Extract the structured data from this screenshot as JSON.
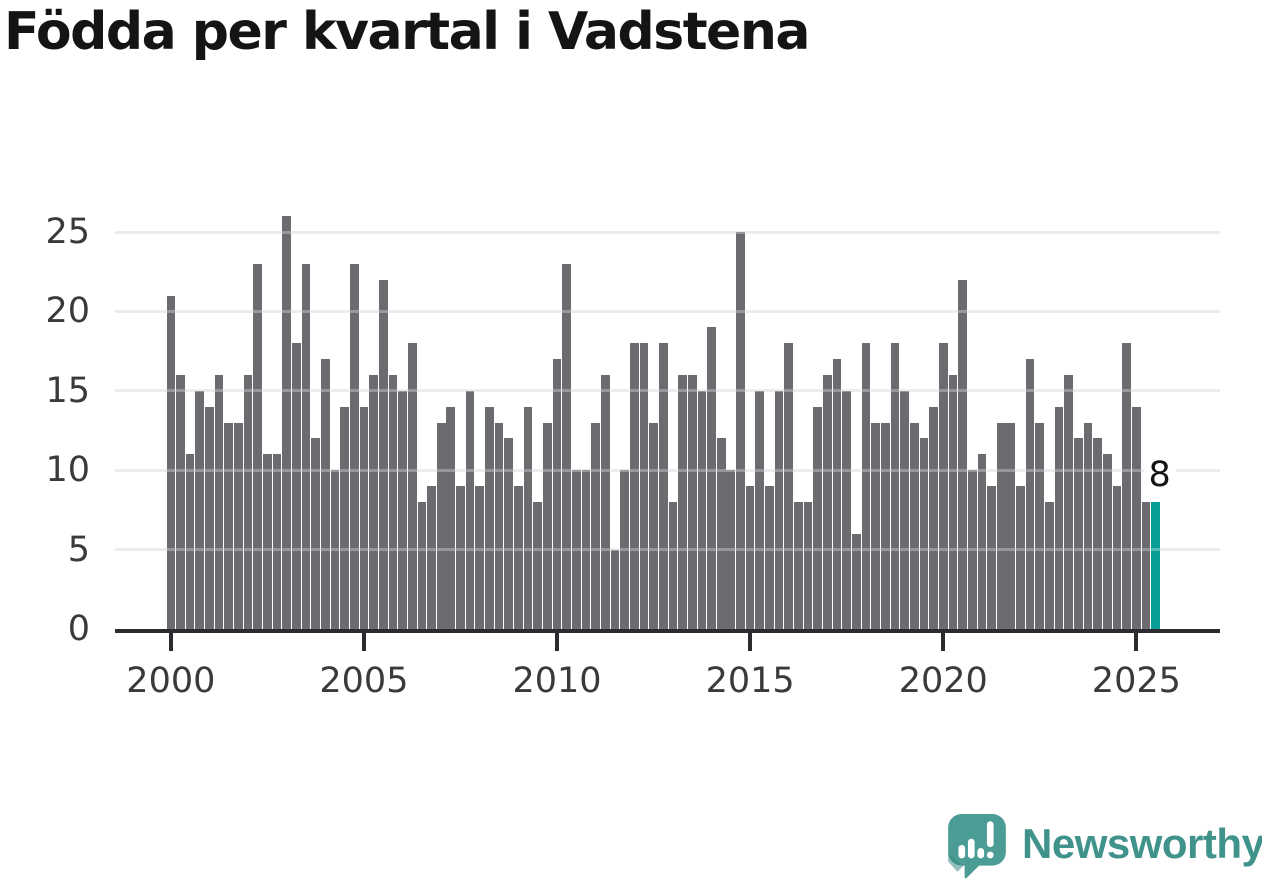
{
  "chart": {
    "title": "Födda per kvartal i Vadstena"
  },
  "chart_data": {
    "type": "bar",
    "title": "Födda per kvartal i Vadstena",
    "xlabel": "",
    "ylabel": "",
    "ylim": [
      0,
      26
    ],
    "yticks": [
      0,
      5,
      10,
      15,
      20,
      25
    ],
    "grid": true,
    "legend": false,
    "bar_color": "#6c6b70",
    "categories": [
      "2000 Q1",
      "2000 Q2",
      "2000 Q3",
      "2000 Q4",
      "2001 Q1",
      "2001 Q2",
      "2001 Q3",
      "2001 Q4",
      "2002 Q1",
      "2002 Q2",
      "2002 Q3",
      "2002 Q4",
      "2003 Q1",
      "2003 Q2",
      "2003 Q3",
      "2003 Q4",
      "2004 Q1",
      "2004 Q2",
      "2004 Q3",
      "2004 Q4",
      "2005 Q1",
      "2005 Q2",
      "2005 Q3",
      "2005 Q4",
      "2006 Q1",
      "2006 Q2",
      "2006 Q3",
      "2006 Q4",
      "2007 Q1",
      "2007 Q2",
      "2007 Q3",
      "2007 Q4",
      "2008 Q1",
      "2008 Q2",
      "2008 Q3",
      "2008 Q4",
      "2009 Q1",
      "2009 Q2",
      "2009 Q3",
      "2009 Q4",
      "2010 Q1",
      "2010 Q2",
      "2010 Q3",
      "2010 Q4",
      "2011 Q1",
      "2011 Q2",
      "2011 Q3",
      "2011 Q4",
      "2012 Q1",
      "2012 Q2",
      "2012 Q3",
      "2012 Q4",
      "2013 Q1",
      "2013 Q2",
      "2013 Q3",
      "2013 Q4",
      "2014 Q1",
      "2014 Q2",
      "2014 Q3",
      "2014 Q4",
      "2015 Q1",
      "2015 Q2",
      "2015 Q3",
      "2015 Q4",
      "2016 Q1",
      "2016 Q2",
      "2016 Q3",
      "2016 Q4",
      "2017 Q1",
      "2017 Q2",
      "2017 Q3",
      "2017 Q4",
      "2018 Q1",
      "2018 Q2",
      "2018 Q3",
      "2018 Q4",
      "2019 Q1",
      "2019 Q2",
      "2019 Q3",
      "2019 Q4",
      "2020 Q1",
      "2020 Q2",
      "2020 Q3",
      "2020 Q4",
      "2021 Q1",
      "2021 Q2",
      "2021 Q3",
      "2021 Q4",
      "2022 Q1",
      "2022 Q2",
      "2022 Q3",
      "2022 Q4",
      "2023 Q1",
      "2023 Q2",
      "2023 Q3",
      "2023 Q4",
      "2024 Q1",
      "2024 Q2",
      "2024 Q3",
      "2024 Q4",
      "2025 Q1",
      "2025 Q2",
      "2025 Q3"
    ],
    "values": [
      21,
      16,
      11,
      15,
      14,
      16,
      13,
      13,
      16,
      23,
      11,
      11,
      26,
      18,
      23,
      12,
      17,
      10,
      14,
      23,
      14,
      16,
      22,
      16,
      15,
      18,
      8,
      9,
      13,
      14,
      9,
      15,
      9,
      14,
      13,
      12,
      9,
      14,
      8,
      13,
      17,
      23,
      10,
      10,
      13,
      16,
      5,
      10,
      18,
      18,
      13,
      18,
      8,
      16,
      16,
      15,
      19,
      12,
      10,
      25,
      9,
      15,
      9,
      15,
      18,
      8,
      8,
      14,
      16,
      17,
      15,
      6,
      18,
      13,
      13,
      18,
      15,
      13,
      12,
      14,
      18,
      16,
      22,
      10,
      11,
      9,
      13,
      13,
      9,
      17,
      13,
      8,
      14,
      16,
      12,
      13,
      12,
      11,
      9,
      18,
      14,
      8,
      8
    ],
    "xticks": [
      {
        "label": "2000",
        "index": 0
      },
      {
        "label": "2005",
        "index": 20
      },
      {
        "label": "2010",
        "index": 40
      },
      {
        "label": "2015",
        "index": 60
      },
      {
        "label": "2020",
        "index": 80
      },
      {
        "label": "2025",
        "index": 100
      }
    ],
    "highlight": {
      "category": "2025 Q3",
      "index": 102,
      "value": 8,
      "label": "8",
      "color": "#089e98"
    }
  },
  "branding": {
    "logo_text": "Newsworthy",
    "logo_color": "#3f938b",
    "icon": "newsworthy-speech-bubble-bar-chart-icon",
    "icon_color": "#4a9c94"
  },
  "colors": {
    "background": "#ffffff",
    "bar": "#6c6b70",
    "highlight": "#089e98",
    "gridline": "#e4e4e7",
    "axis": "#2b2a2e",
    "tick_label": "#3a3a3a",
    "title": "#141414"
  }
}
